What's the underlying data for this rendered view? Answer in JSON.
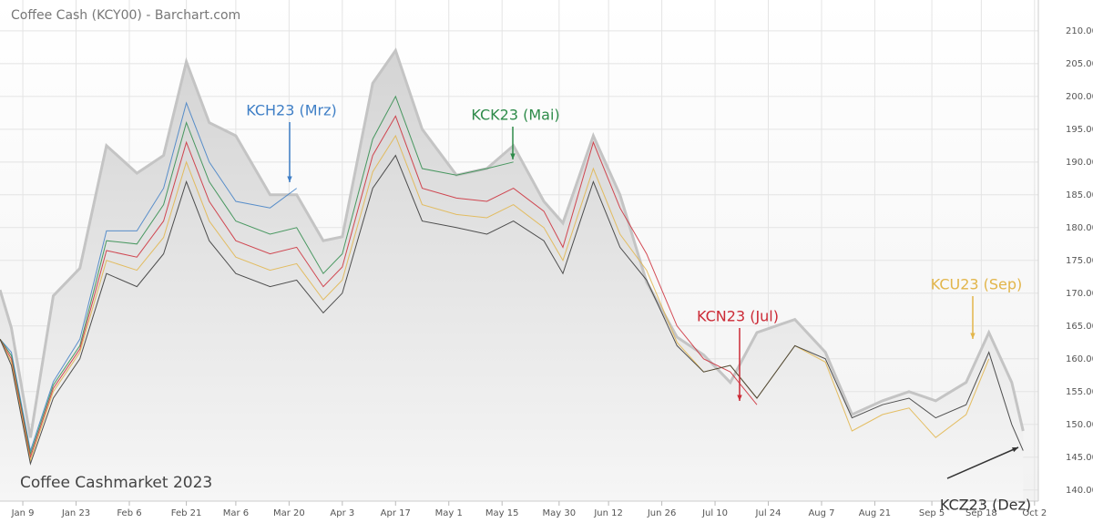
{
  "chart_data": {
    "type": "line",
    "title": "Coffee Cash (KCY00) - Barchart.com",
    "subtitle": "Coffee Cashmarket 2023",
    "x": [
      "Jan 3",
      "Jan 6",
      "Jan 11",
      "Jan 17",
      "Jan 24",
      "Jan 31",
      "Feb 8",
      "Feb 15",
      "Feb 21",
      "Feb 27",
      "Mar 6",
      "Mar 15",
      "Mar 22",
      "Mar 29",
      "Apr 3",
      "Apr 11",
      "Apr 17",
      "Apr 24",
      "May 3",
      "May 11",
      "May 18",
      "May 26",
      "May 31",
      "Jun 8",
      "Jun 15",
      "Jun 22",
      "Jun 30",
      "Jul 7",
      "Jul 14",
      "Jul 21",
      "Jul 31",
      "Aug 8",
      "Aug 15",
      "Aug 23",
      "Aug 30",
      "Sep 6",
      "Sep 14",
      "Sep 20",
      "Sep 26",
      "Sep 29"
    ],
    "cash": {
      "color": "#c4c4c4",
      "values": [
        170.5,
        164.7,
        148,
        169.6,
        173.8,
        192.5,
        188.3,
        191,
        205.3,
        196,
        194,
        185,
        185,
        178,
        178.6,
        202,
        207,
        195,
        188,
        189,
        192.5,
        184,
        180.7,
        194,
        185,
        171.7,
        163.3,
        160.6,
        156.4,
        164,
        166,
        161,
        151.5,
        153.6,
        155,
        153.6,
        156.4,
        164,
        156.4,
        149
      ]
    },
    "series": [
      {
        "name": "KCH23 (Mrz)",
        "color": "#3f7fc6",
        "values": [
          163,
          161,
          146,
          156.5,
          163,
          179.5,
          179.5,
          186,
          199,
          190,
          184,
          183,
          186,
          null,
          null,
          null,
          null,
          null,
          null,
          null,
          null,
          null,
          null,
          null,
          null,
          null,
          null,
          null,
          null,
          null,
          null,
          null,
          null,
          null,
          null,
          null,
          null,
          null,
          null,
          null
        ]
      },
      {
        "name": "KCK23 (Mai)",
        "color": "#2e8b4a",
        "values": [
          163,
          160.5,
          145.5,
          156,
          162,
          178,
          177.5,
          183.5,
          196,
          187,
          181,
          179,
          180,
          173,
          176,
          193.5,
          200,
          189,
          188,
          189,
          190,
          null,
          null,
          null,
          null,
          null,
          null,
          null,
          null,
          null,
          null,
          null,
          null,
          null,
          null,
          null,
          null,
          null,
          null,
          null
        ]
      },
      {
        "name": "KCN23 (Jul)",
        "color": "#cc2a36",
        "values": [
          163,
          160,
          145,
          155.5,
          161.5,
          176.5,
          175.5,
          181,
          193,
          184,
          178,
          176,
          177,
          171,
          174,
          191,
          197,
          186,
          184.5,
          184,
          186,
          182.5,
          177,
          193,
          183,
          176,
          165,
          160,
          158,
          153,
          null,
          null,
          null,
          null,
          null,
          null,
          null,
          null,
          null,
          null
        ]
      },
      {
        "name": "KCU23 (Sep)",
        "color": "#e2b54a",
        "values": [
          163,
          159.5,
          144.5,
          155,
          161,
          175,
          173.5,
          178.5,
          190,
          181,
          175.5,
          173.5,
          174.5,
          169,
          172,
          188.5,
          194,
          183.5,
          182,
          181.5,
          183.5,
          180,
          175,
          189,
          179,
          173.5,
          162.5,
          158,
          159,
          154,
          162,
          159.5,
          149,
          151.5,
          152.5,
          148,
          151.5,
          160,
          null,
          null
        ]
      },
      {
        "name": "KCZ23 (Dez)",
        "color": "#333333",
        "values": [
          163,
          159,
          144,
          154,
          160,
          173,
          171,
          176,
          187,
          178,
          173,
          171,
          172,
          167,
          170,
          186,
          191,
          181,
          180,
          179,
          181,
          178,
          173,
          187,
          177,
          172,
          162,
          158,
          159,
          154,
          162,
          160,
          151,
          153,
          154,
          151,
          153,
          161,
          150,
          146
        ]
      }
    ],
    "xlim": [
      "Jan 3",
      "Oct 3"
    ],
    "xticks": [
      "Jan 9",
      "Jan 23",
      "Feb 6",
      "Feb 21",
      "Mar 6",
      "Mar 20",
      "Apr 3",
      "Apr 17",
      "May 1",
      "May 15",
      "May 30",
      "Jun 12",
      "Jun 26",
      "Jul 10",
      "Jul 24",
      "Aug 7",
      "Aug 21",
      "Sep 5",
      "Sep 18",
      "Oct 2"
    ],
    "ylim": [
      138.3,
      214.7
    ],
    "yticks": [
      {
        "value": 140,
        "label": "140.00"
      },
      {
        "value": 145,
        "label": "145.00"
      },
      {
        "value": 150,
        "label": "150.00"
      },
      {
        "value": 155,
        "label": "155.00"
      },
      {
        "value": 160,
        "label": "160.00"
      },
      {
        "value": 165,
        "label": "165.00"
      },
      {
        "value": 170,
        "label": "170.00"
      },
      {
        "value": 175,
        "label": "175.00"
      },
      {
        "value": 180,
        "label": "180.00"
      },
      {
        "value": 185,
        "label": "185.00"
      },
      {
        "value": 190,
        "label": "190.00"
      },
      {
        "value": 195,
        "label": "195.00"
      },
      {
        "value": 200,
        "label": "200.00"
      },
      {
        "value": 205,
        "label": "205.00"
      },
      {
        "value": 210,
        "label": "210.00"
      }
    ],
    "grid": true
  }
}
